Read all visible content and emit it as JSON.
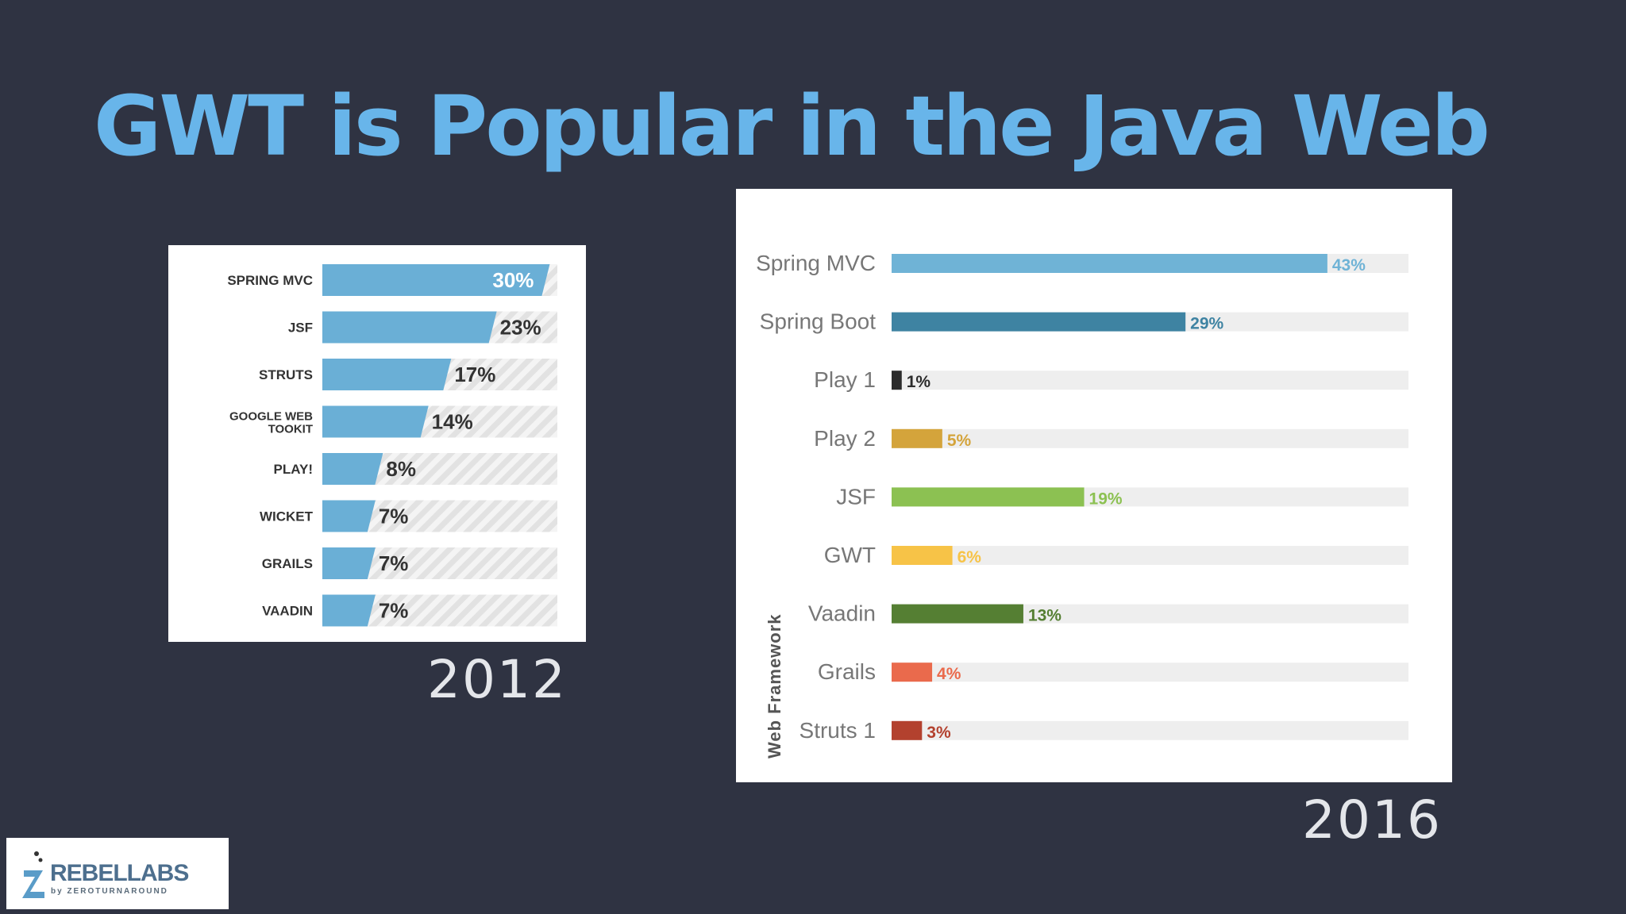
{
  "slide": {
    "title": "GWT is Popular in the Java Web",
    "logo": {
      "name": "REBELLABS",
      "tagline": "by ZEROTURNAROUND"
    }
  },
  "colors": {
    "background": "#2f3342",
    "title": "#68b5ea",
    "bar_2012": "#6aafd6",
    "track_2016": "#eeeeee"
  },
  "chart_data": [
    {
      "type": "bar",
      "orientation": "horizontal",
      "caption": "2012",
      "categories": [
        "SPRING MVC",
        "JSF",
        "STRUTS",
        "GOOGLE WEB TOOKIT",
        "PLAY!",
        "WICKET",
        "GRAILS",
        "VAADIN"
      ],
      "values": [
        30,
        23,
        17,
        14,
        8,
        7,
        7,
        7
      ],
      "value_labels": [
        "30%",
        "23%",
        "17%",
        "14%",
        "8%",
        "7%",
        "7%",
        "7%"
      ],
      "xlim": [
        0,
        31
      ],
      "unit": "%"
    },
    {
      "type": "bar",
      "orientation": "horizontal",
      "caption": "2016",
      "ylabel": "Web Framework",
      "categories": [
        "Spring MVC",
        "Spring Boot",
        "Play 1",
        "Play 2",
        "JSF",
        "GWT",
        "Vaadin",
        "Grails",
        "Struts 1"
      ],
      "values": [
        43,
        29,
        1,
        5,
        19,
        6,
        13,
        4,
        3
      ],
      "value_labels": [
        "43%",
        "29%",
        "1%",
        "5%",
        "19%",
        "6%",
        "13%",
        "4%",
        "3%"
      ],
      "colors": [
        "#6fb3d6",
        "#3e83a2",
        "#2b2b2b",
        "#d4a43b",
        "#8cc152",
        "#f7c347",
        "#557f33",
        "#ea6a4c",
        "#b3412e"
      ],
      "xlim": [
        0,
        51
      ],
      "unit": "%"
    }
  ]
}
